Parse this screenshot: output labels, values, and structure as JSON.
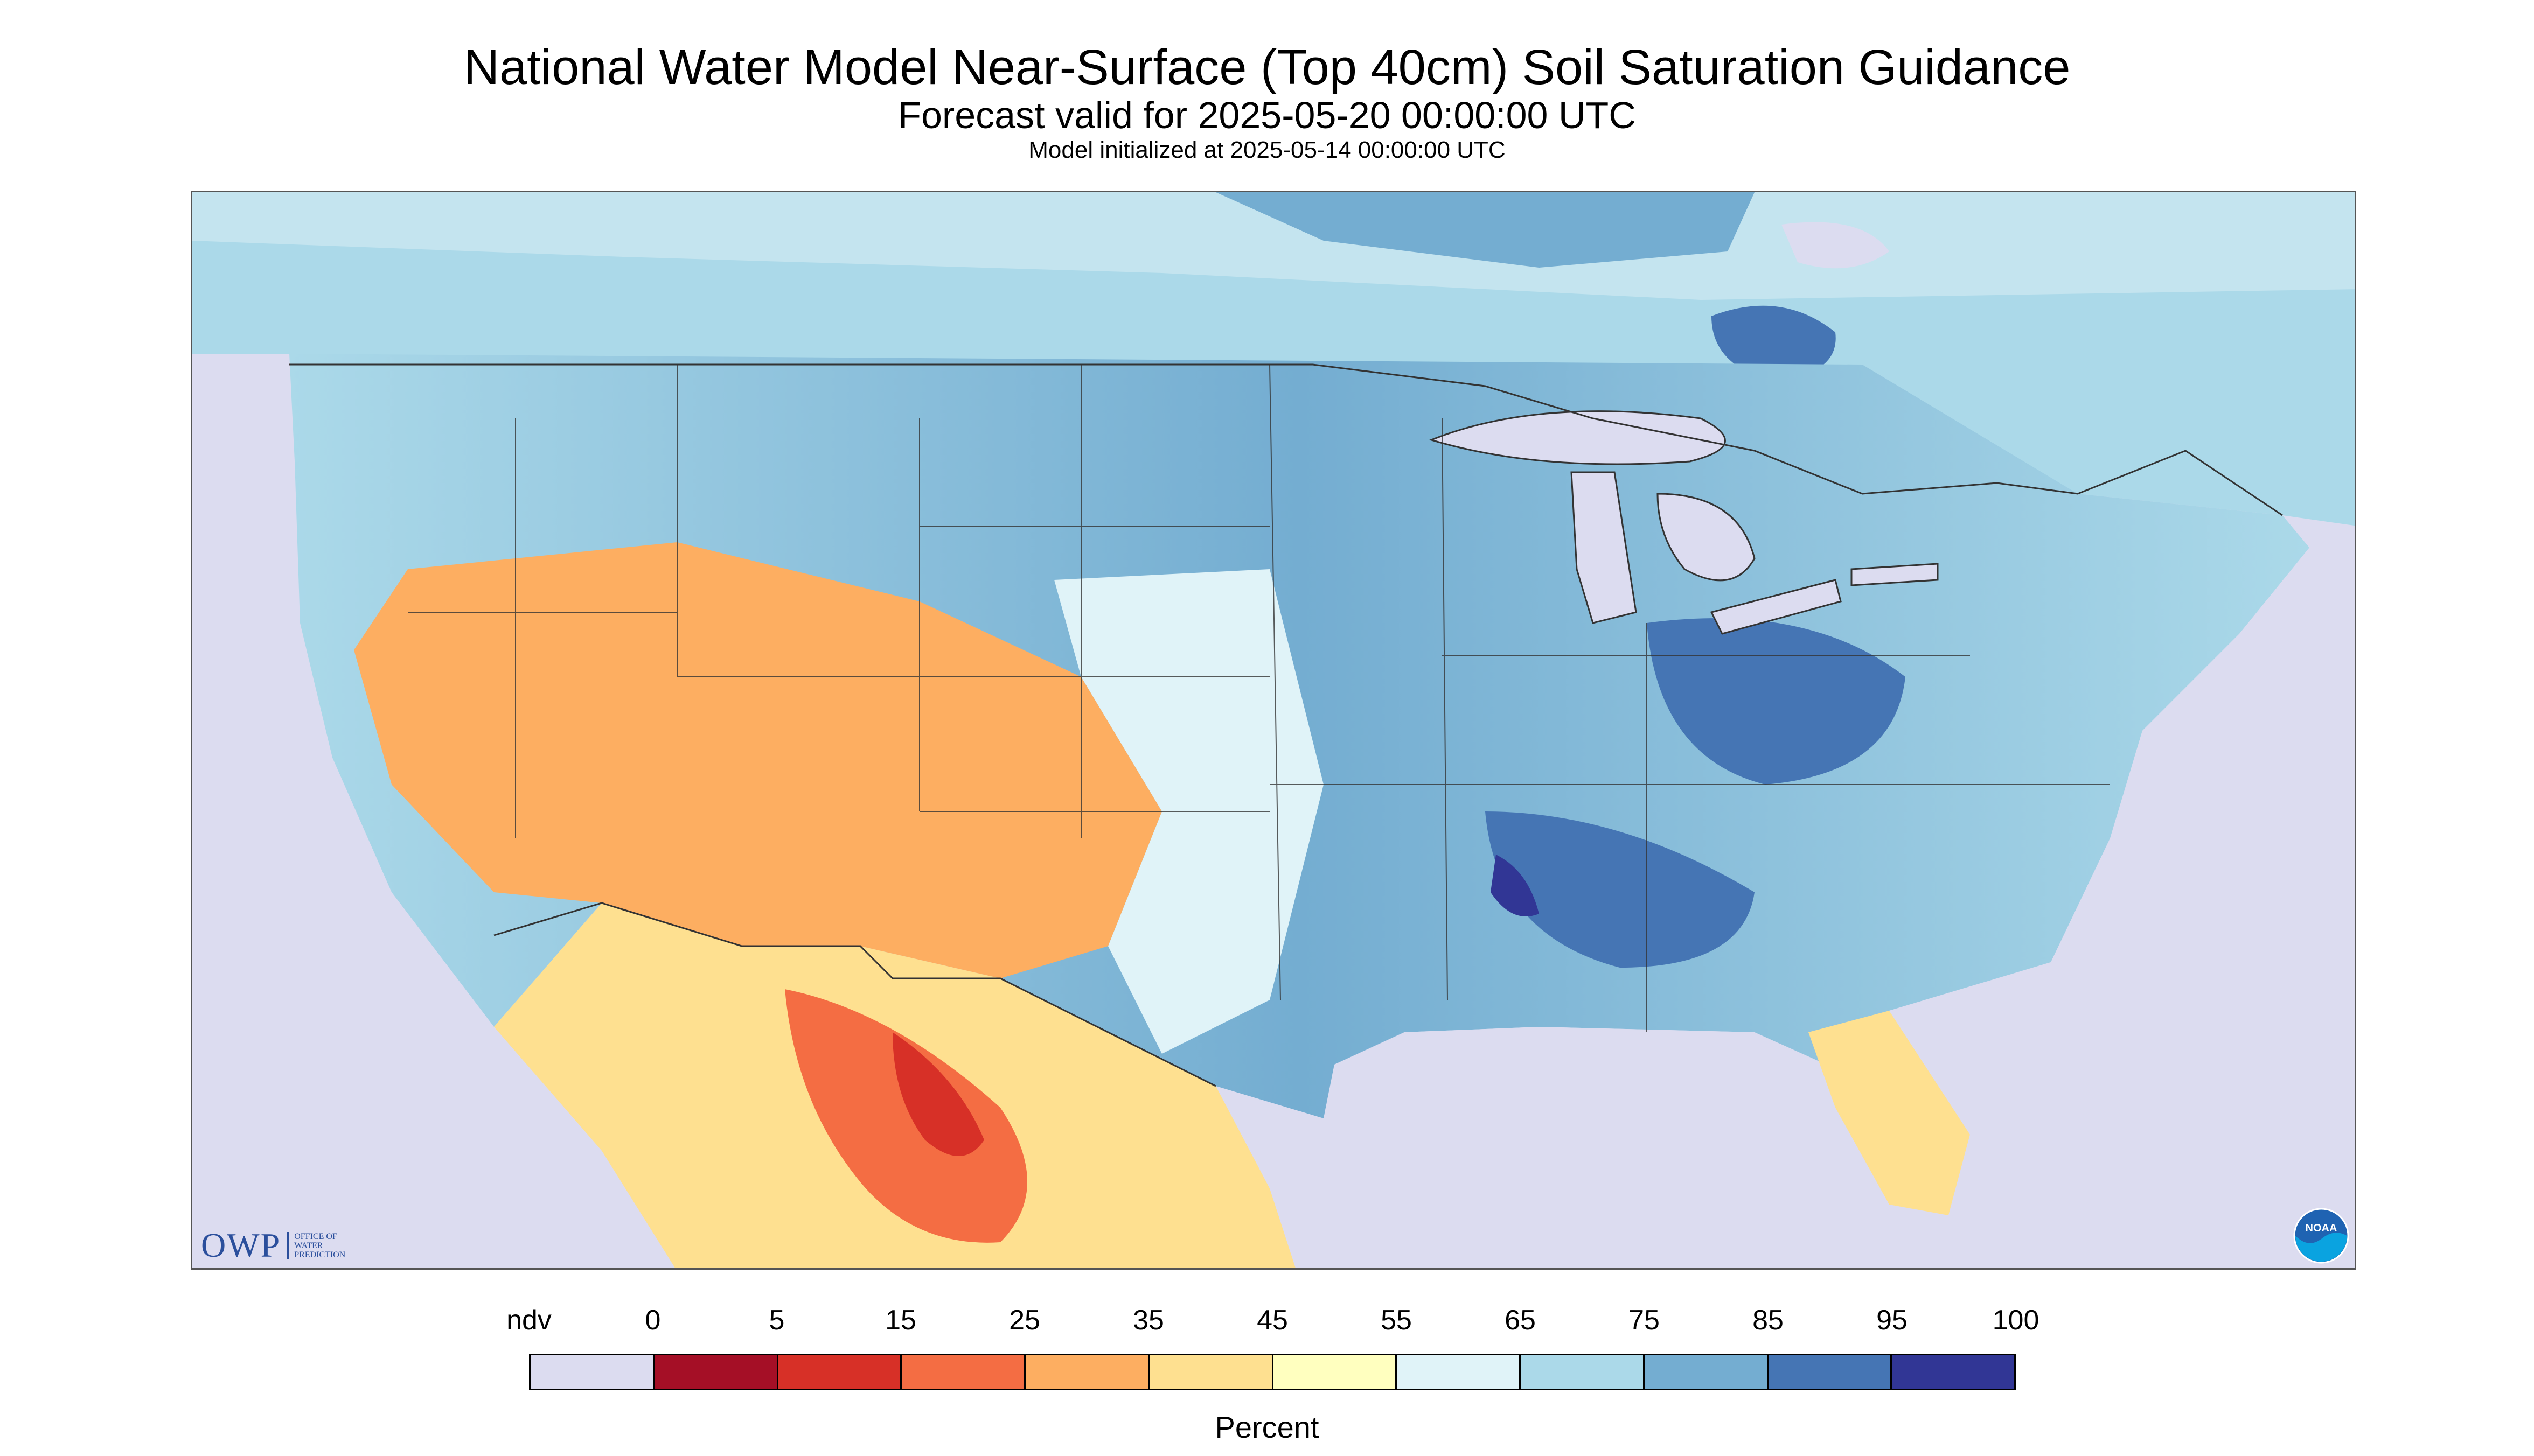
{
  "titles": {
    "main": "National Water Model Near-Surface (Top 40cm) Soil Saturation Guidance",
    "forecast": "Forecast valid for 2025-05-20 00:00:00 UTC",
    "init": "Model initialized at 2025-05-14 00:00:00 UTC"
  },
  "logos": {
    "owp_mark": "OWP",
    "owp_lines": [
      "OFFICE OF",
      "WATER",
      "PREDICTION"
    ],
    "noaa": "NOAA"
  },
  "legend": {
    "label": "Percent",
    "ticks": [
      "ndv",
      "0",
      "5",
      "15",
      "25",
      "35",
      "45",
      "55",
      "65",
      "75",
      "85",
      "95",
      "100"
    ],
    "swatch_colors": [
      "#dcdcf0",
      "#a50f26",
      "#d73027",
      "#f46d43",
      "#fdae61",
      "#fee090",
      "#ffffbf",
      "#e0f3f8",
      "#abd9e9",
      "#74add1",
      "#4575b4",
      "#313695"
    ]
  },
  "colors": {
    "no_data": "#dcdcf0",
    "lake": "#dcdcf0",
    "boundary": "#333333"
  }
}
